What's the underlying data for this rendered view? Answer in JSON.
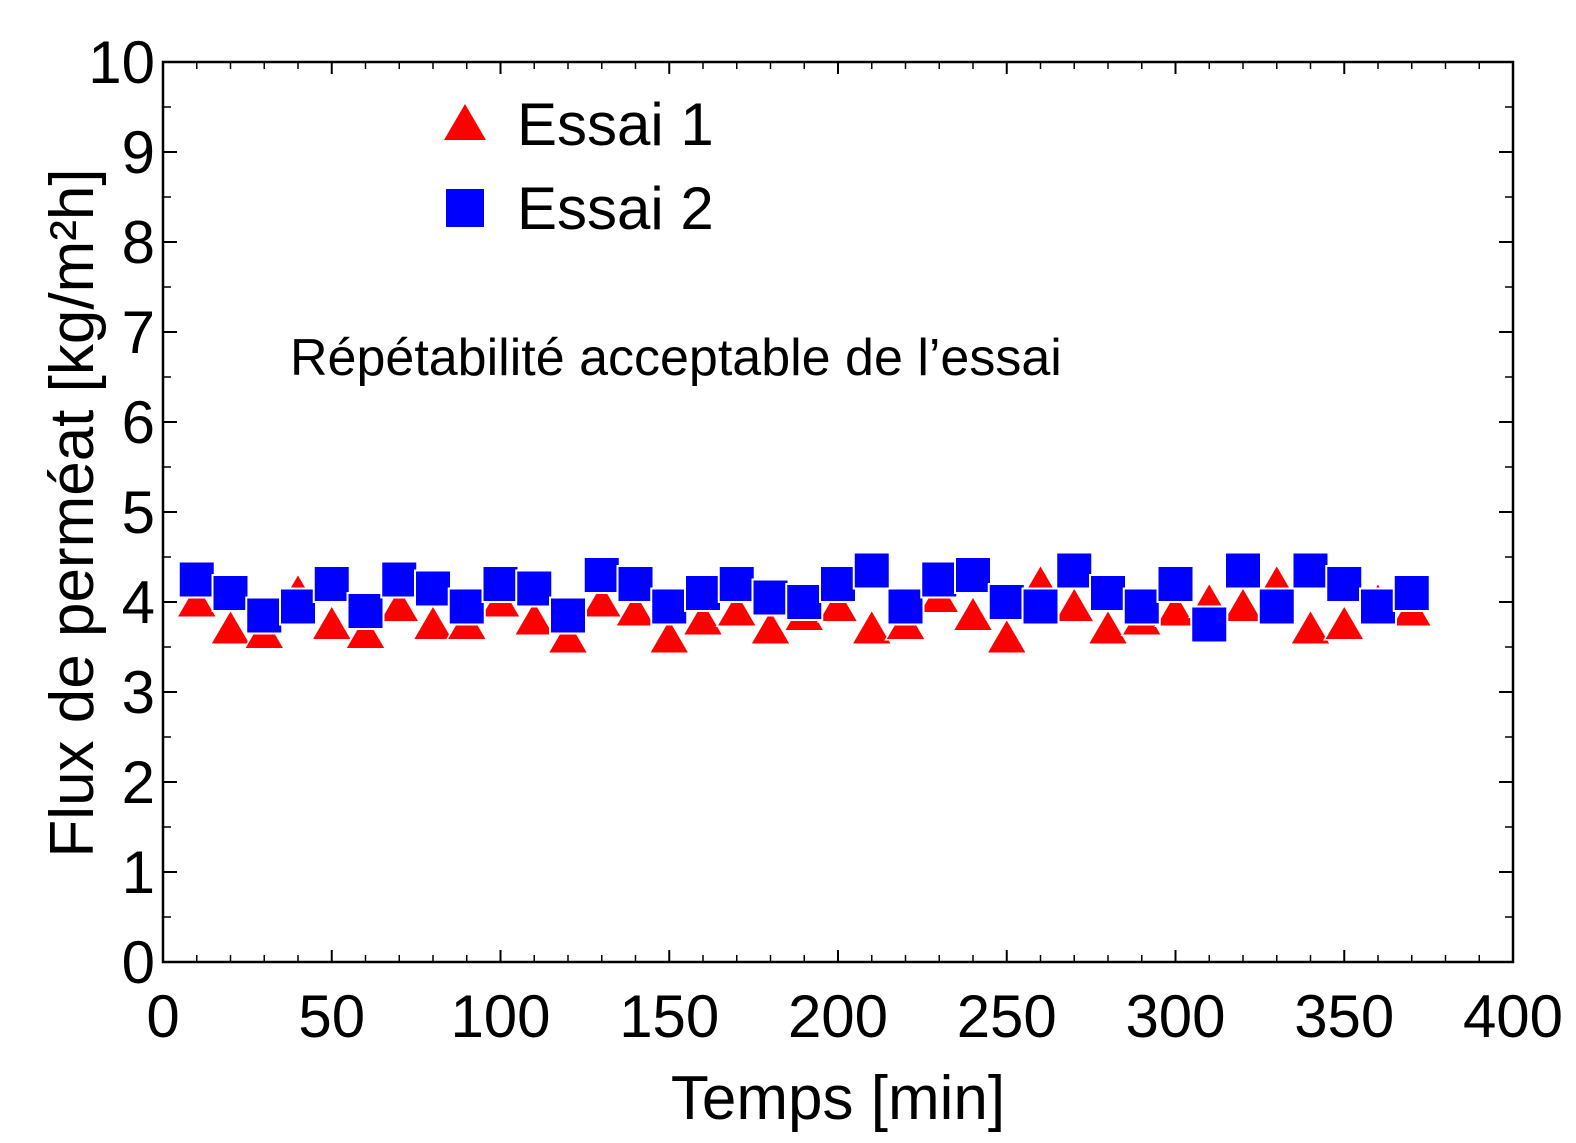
{
  "chart_data": {
    "type": "scatter",
    "xlabel": "Temps [min]",
    "ylabel": "Flux de perméat [kg/m²h]",
    "xlim": [
      0,
      400
    ],
    "ylim": [
      0,
      10
    ],
    "xticks": [
      0,
      50,
      100,
      150,
      200,
      250,
      300,
      350,
      400
    ],
    "yticks": [
      0,
      1,
      2,
      3,
      4,
      5,
      6,
      7,
      8,
      9,
      10
    ],
    "grid": false,
    "legend_position": "top-left",
    "annotation": {
      "text": "Répétabilité acceptable de l’essai",
      "color": "#ff0000"
    },
    "x": [
      10,
      20,
      30,
      40,
      50,
      60,
      70,
      80,
      90,
      100,
      110,
      120,
      130,
      140,
      150,
      160,
      170,
      180,
      190,
      200,
      210,
      220,
      230,
      240,
      250,
      260,
      270,
      280,
      290,
      300,
      310,
      320,
      330,
      340,
      350,
      360,
      370
    ],
    "series": [
      {
        "name": "Essai 1",
        "marker": "triangle",
        "color": "#ff0000",
        "values": [
          4.0,
          3.7,
          3.65,
          4.1,
          3.75,
          3.65,
          3.95,
          3.75,
          3.75,
          4.0,
          3.8,
          3.6,
          4.0,
          3.9,
          3.6,
          3.8,
          3.9,
          3.7,
          3.85,
          3.95,
          3.7,
          3.75,
          4.05,
          3.85,
          3.6,
          4.2,
          3.95,
          3.7,
          3.8,
          3.9,
          4.0,
          3.95,
          4.2,
          3.7,
          3.75,
          4.0,
          3.9
        ]
      },
      {
        "name": "Essai 2",
        "marker": "square",
        "color": "#0000ff",
        "values": [
          4.25,
          4.1,
          3.85,
          3.95,
          4.2,
          3.9,
          4.25,
          4.15,
          3.95,
          4.2,
          4.15,
          3.85,
          4.3,
          4.2,
          3.95,
          4.1,
          4.2,
          4.05,
          4.0,
          4.2,
          4.35,
          3.95,
          4.25,
          4.3,
          4.0,
          3.95,
          4.35,
          4.1,
          3.95,
          4.2,
          3.75,
          4.35,
          3.95,
          4.35,
          4.2,
          3.95,
          4.1
        ]
      }
    ]
  }
}
